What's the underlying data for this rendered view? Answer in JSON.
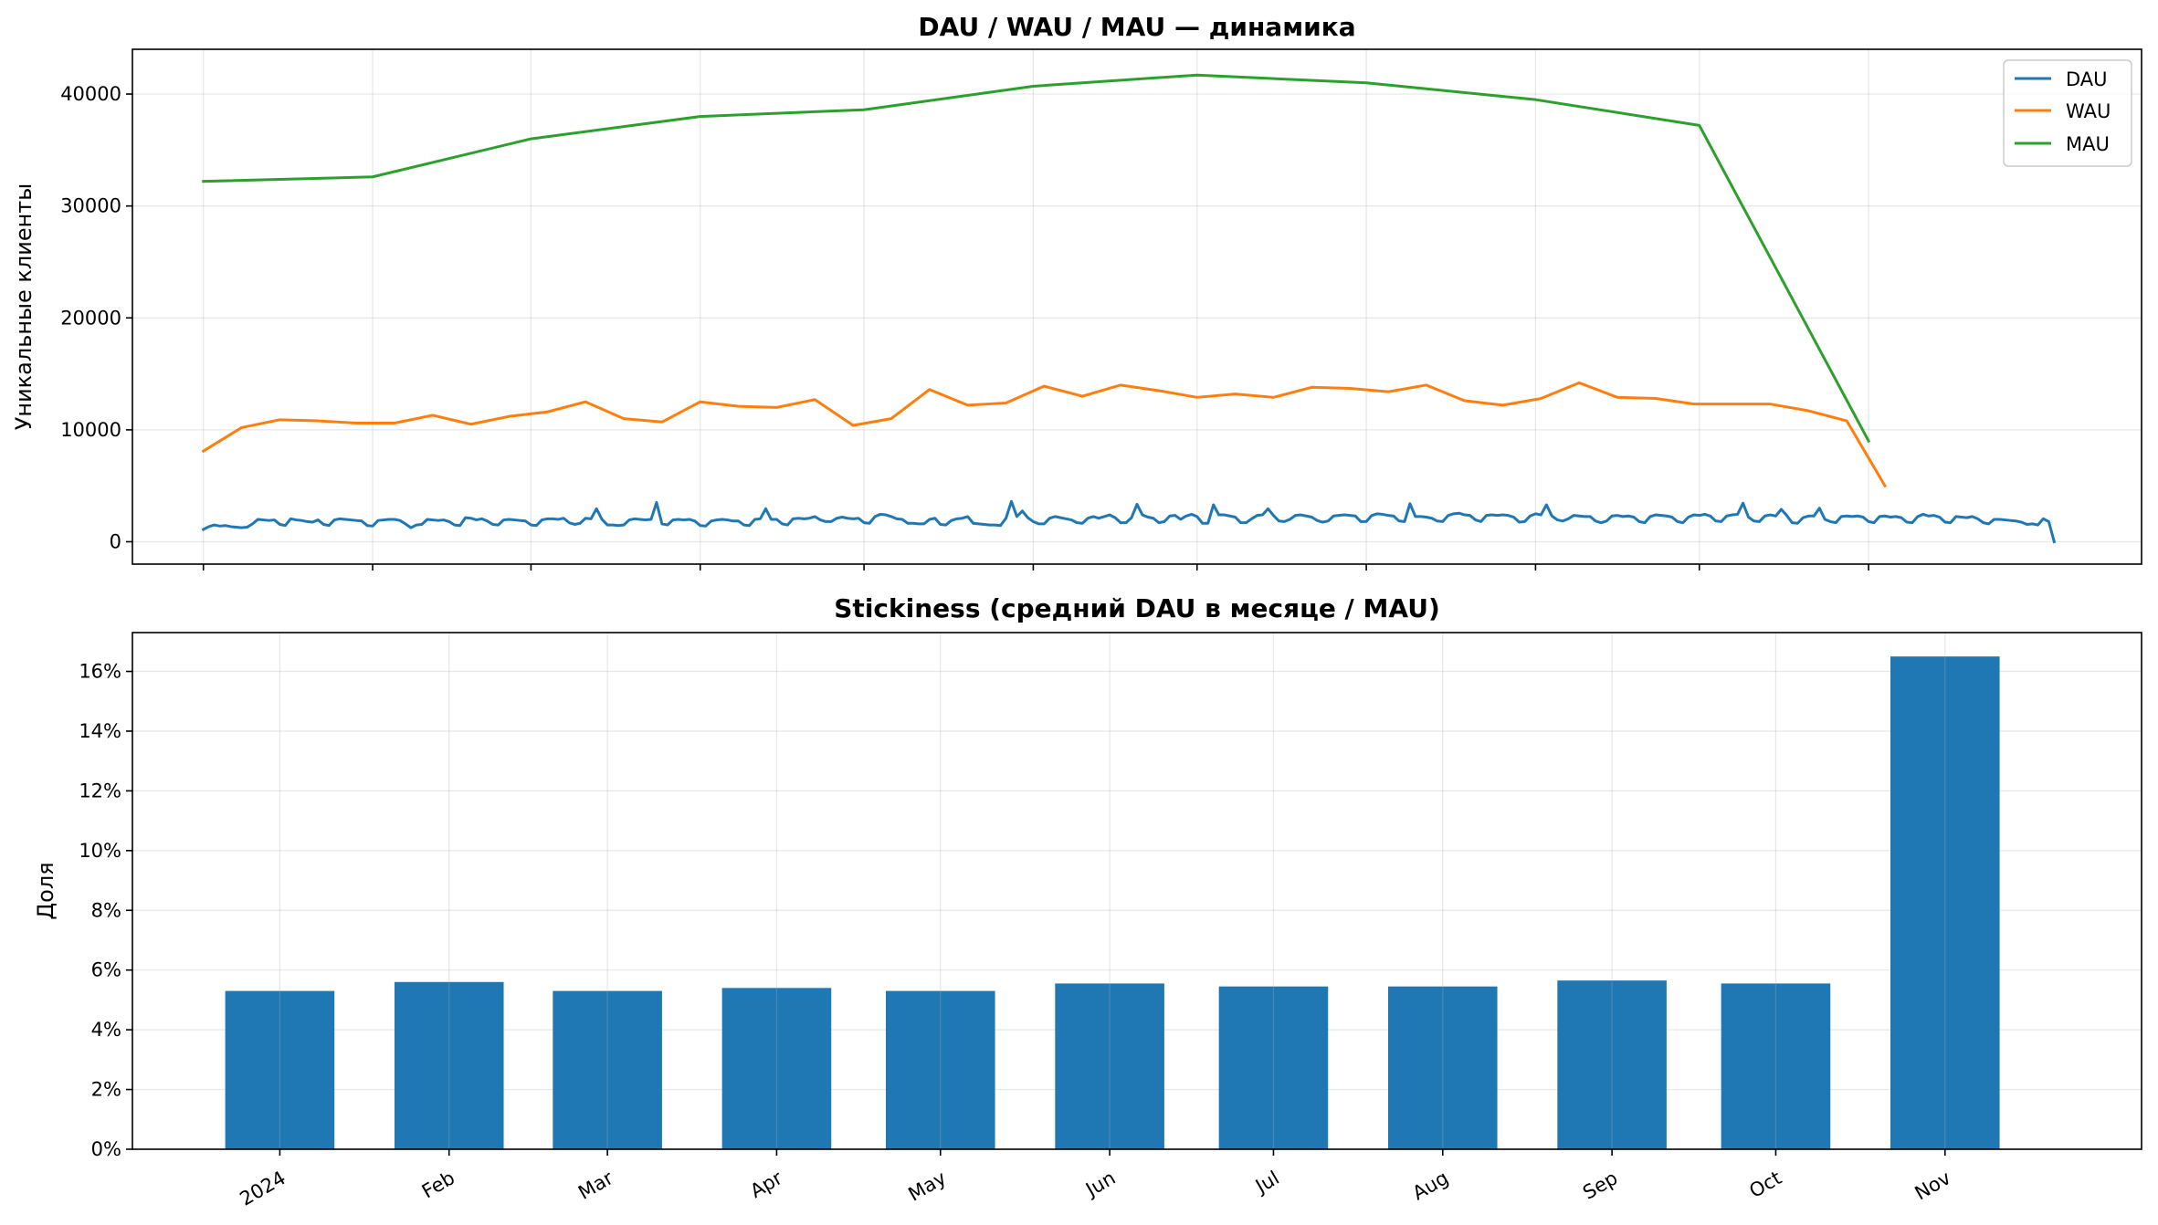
{
  "chart_data": [
    {
      "type": "line",
      "title": "DAU / WAU / MAU — динамика",
      "ylabel": "Уникальные клиенты",
      "ylim": [
        -2000,
        44000
      ],
      "yticks": [
        0,
        10000,
        20000,
        30000,
        40000
      ],
      "xlim": [
        "2023-12-19",
        "2024-12-21"
      ],
      "grid": true,
      "legend": "top-right",
      "series": [
        {
          "name": "DAU",
          "color": "#1f77b4",
          "frequency": "daily",
          "start": "2024-01-01",
          "values": [
            1100,
            1350,
            1500,
            1400,
            1450,
            1350,
            1300,
            1250,
            1300,
            1600,
            2000,
            1950,
            1900,
            1950,
            1550,
            1450,
            2050,
            1950,
            1900,
            1800,
            1750,
            1950,
            1550,
            1450,
            1950,
            2050,
            2000,
            1950,
            1900,
            1850,
            1450,
            1400,
            1900,
            1950,
            2000,
            2000,
            1900,
            1600,
            1250,
            1500,
            1550,
            2000,
            1950,
            1900,
            1950,
            1800,
            1500,
            1450,
            2150,
            2100,
            1950,
            2050,
            1850,
            1550,
            1500,
            1950,
            2000,
            1950,
            1900,
            1850,
            1500,
            1450,
            1950,
            2050,
            2050,
            2000,
            2100,
            1700,
            1550,
            1650,
            2100,
            2050,
            2950,
            2000,
            1500,
            1500,
            1450,
            1500,
            1950,
            2050,
            2000,
            1950,
            2000,
            3500,
            1600,
            1500,
            1950,
            2000,
            1950,
            2000,
            1850,
            1450,
            1400,
            1850,
            1950,
            2000,
            1950,
            1850,
            1850,
            1500,
            1450,
            2000,
            2050,
            2950,
            2000,
            2000,
            1600,
            1500,
            2050,
            2100,
            2050,
            2100,
            2250,
            1950,
            1800,
            1800,
            2100,
            2200,
            2100,
            2050,
            2100,
            1700,
            1650,
            2250,
            2450,
            2400,
            2250,
            2050,
            2000,
            1650,
            1650,
            1600,
            1600,
            2000,
            2100,
            1550,
            1500,
            1900,
            2050,
            2100,
            2250,
            1650,
            1600,
            1550,
            1500,
            1500,
            1450,
            2100,
            3600,
            2250,
            2750,
            2150,
            1800,
            1600,
            1600,
            2100,
            2250,
            2150,
            2050,
            1950,
            1700,
            1650,
            2100,
            2250,
            2100,
            2250,
            2400,
            2150,
            1700,
            1700,
            2150,
            3350,
            2400,
            2200,
            2100,
            1700,
            1800,
            2300,
            2350,
            2000,
            2300,
            2450,
            2250,
            1650,
            1650,
            3300,
            2400,
            2400,
            2300,
            2200,
            1700,
            1700,
            2050,
            2350,
            2400,
            2950,
            2350,
            1850,
            1800,
            2000,
            2350,
            2400,
            2300,
            2200,
            1900,
            1750,
            1850,
            2300,
            2350,
            2400,
            2350,
            2300,
            1800,
            1800,
            2350,
            2500,
            2450,
            2350,
            2300,
            1850,
            1800,
            3400,
            2250,
            2250,
            2200,
            2100,
            1850,
            1800,
            2350,
            2500,
            2550,
            2400,
            2350,
            1950,
            1800,
            2350,
            2400,
            2350,
            2400,
            2350,
            2200,
            1750,
            1800,
            2300,
            2500,
            2400,
            3300,
            2300,
            1950,
            1850,
            2050,
            2350,
            2300,
            2250,
            2250,
            1850,
            1700,
            1850,
            2300,
            2350,
            2250,
            2300,
            2200,
            1800,
            1700,
            2250,
            2400,
            2350,
            2300,
            2200,
            1800,
            1700,
            2200,
            2400,
            2350,
            2450,
            2300,
            1850,
            1800,
            2300,
            2400,
            2450,
            3450,
            2200,
            1850,
            1800,
            2300,
            2400,
            2300,
            2900,
            2350,
            1700,
            1650,
            2150,
            2300,
            2300,
            3000,
            2000,
            1800,
            1700,
            2250,
            2300,
            2250,
            2300,
            2200,
            1800,
            1700,
            2250,
            2300,
            2200,
            2250,
            2150,
            1750,
            1700,
            2250,
            2450,
            2300,
            2350,
            2200,
            1750,
            1700,
            2250,
            2200,
            2150,
            2250,
            2050,
            1700,
            1600,
            2000,
            2000,
            1950,
            1900,
            1850,
            1750,
            1550,
            1600,
            1500,
            2050,
            1800,
            0
          ]
        },
        {
          "name": "WAU",
          "color": "#ff7f0e",
          "frequency": "weekly",
          "start": "2024-01-01",
          "values": [
            8100,
            10200,
            10900,
            10800,
            10600,
            10600,
            11300,
            10500,
            11200,
            11600,
            12500,
            11000,
            10700,
            12500,
            12100,
            12000,
            12700,
            10400,
            11000,
            13600,
            12200,
            12400,
            13900,
            13000,
            14000,
            13500,
            12900,
            13200,
            12900,
            13800,
            13700,
            13400,
            14000,
            12600,
            12200,
            12800,
            14200,
            12900,
            12800,
            12300,
            12300,
            12300,
            11700,
            10800,
            5000
          ]
        },
        {
          "name": "MAU",
          "color": "#2ca02c",
          "frequency": "monthly",
          "x": [
            "2024-01-01",
            "2024-02-01",
            "2024-03-01",
            "2024-04-01",
            "2024-05-01",
            "2024-06-01",
            "2024-07-01",
            "2024-08-01",
            "2024-09-01",
            "2024-10-01",
            "2024-11-01"
          ],
          "values": [
            32200,
            32600,
            36000,
            38000,
            38600,
            40700,
            41700,
            41000,
            39500,
            37200,
            9000
          ]
        }
      ]
    },
    {
      "type": "bar",
      "title": "Stickiness (средний DAU в месяце / MAU)",
      "ylabel": "Доля",
      "ylim": [
        0,
        0.173
      ],
      "yticks": [
        0,
        0.02,
        0.04,
        0.06,
        0.08,
        0.1,
        0.12,
        0.14,
        0.16
      ],
      "ytick_labels": [
        "0%",
        "2%",
        "4%",
        "6%",
        "8%",
        "10%",
        "12%",
        "14%",
        "16%"
      ],
      "bar_color": "#1f77b4",
      "grid": true,
      "categories": [
        "2024",
        "Feb",
        "Mar",
        "Apr",
        "May",
        "Jun",
        "Jul",
        "Aug",
        "Sep",
        "Oct",
        "Nov"
      ],
      "x": [
        "2024-01-01",
        "2024-02-01",
        "2024-03-01",
        "2024-04-01",
        "2024-05-01",
        "2024-06-01",
        "2024-07-01",
        "2024-08-01",
        "2024-09-01",
        "2024-10-01",
        "2024-11-01"
      ],
      "values": [
        0.053,
        0.056,
        0.053,
        0.054,
        0.053,
        0.0555,
        0.0545,
        0.0545,
        0.0565,
        0.0555,
        0.165
      ]
    }
  ]
}
